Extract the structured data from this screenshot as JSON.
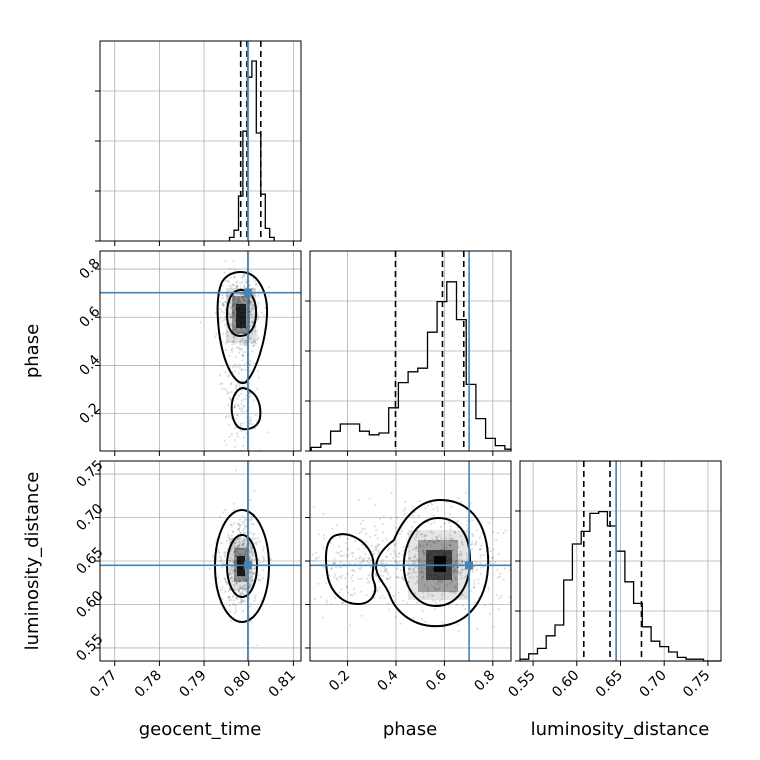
{
  "chart_data": {
    "type": "corner",
    "parameters": [
      {
        "name": "geocent_time",
        "truth": 0.7998,
        "range": [
          0.7667,
          0.8117
        ],
        "ticks": [
          0.77,
          0.78,
          0.79,
          0.8,
          0.81
        ],
        "tick_labels": [
          "0.77",
          "0.78",
          "0.79",
          "0.80",
          "0.81"
        ],
        "quantiles": [
          0.7982,
          0.7996,
          0.8027
        ]
      },
      {
        "name": "phase",
        "truth": 0.702,
        "range": [
          0.045,
          0.875
        ],
        "ticks": [
          0.2,
          0.4,
          0.6,
          0.8
        ],
        "tick_labels": [
          "0.2",
          "0.4",
          "0.6",
          "0.8"
        ],
        "quantiles": [
          0.398,
          0.592,
          0.68
        ]
      },
      {
        "name": "luminosity_distance",
        "truth": 0.645,
        "range": [
          0.535,
          0.765
        ],
        "ticks": [
          0.55,
          0.6,
          0.65,
          0.7,
          0.75
        ],
        "tick_labels": [
          "0.55",
          "0.60",
          "0.65",
          "0.70",
          "0.75"
        ],
        "quantiles": [
          0.608,
          0.638,
          0.674
        ]
      }
    ],
    "histograms": [
      {
        "param": "geocent_time",
        "bin_edges": [
          0.7957,
          0.7967,
          0.7977,
          0.7987,
          0.7997,
          0.8007,
          0.8017,
          0.8027,
          0.8037,
          0.8047,
          0.8057
        ],
        "counts": [
          0.02,
          0.06,
          0.25,
          0.61,
          0.91,
          1.0,
          0.6,
          0.26,
          0.07,
          0.02
        ]
      },
      {
        "param": "phase",
        "bin_edges": [
          0.05,
          0.09,
          0.13,
          0.17,
          0.21,
          0.25,
          0.29,
          0.33,
          0.37,
          0.41,
          0.45,
          0.49,
          0.53,
          0.57,
          0.61,
          0.65,
          0.69,
          0.73,
          0.77,
          0.81,
          0.85,
          0.875
        ],
        "counts": [
          0.02,
          0.04,
          0.11,
          0.15,
          0.15,
          0.11,
          0.09,
          0.1,
          0.24,
          0.38,
          0.44,
          0.46,
          0.66,
          0.83,
          0.94,
          0.73,
          0.37,
          0.18,
          0.07,
          0.03,
          0.01
        ]
      },
      {
        "param": "luminosity_distance",
        "bin_edges": [
          0.535,
          0.545,
          0.555,
          0.565,
          0.575,
          0.585,
          0.595,
          0.605,
          0.615,
          0.625,
          0.635,
          0.645,
          0.655,
          0.665,
          0.675,
          0.685,
          0.695,
          0.705,
          0.715,
          0.725,
          0.735,
          0.745,
          0.755,
          0.765
        ],
        "counts": [
          0.01,
          0.04,
          0.07,
          0.14,
          0.2,
          0.45,
          0.65,
          0.72,
          0.82,
          0.83,
          0.75,
          0.61,
          0.44,
          0.32,
          0.19,
          0.11,
          0.08,
          0.05,
          0.02,
          0.01,
          0.01,
          0.0,
          0.0
        ]
      }
    ],
    "contour_levels": [
      "39.3%",
      "86.5%"
    ],
    "truth_color": "#4682b4",
    "grid": true
  }
}
